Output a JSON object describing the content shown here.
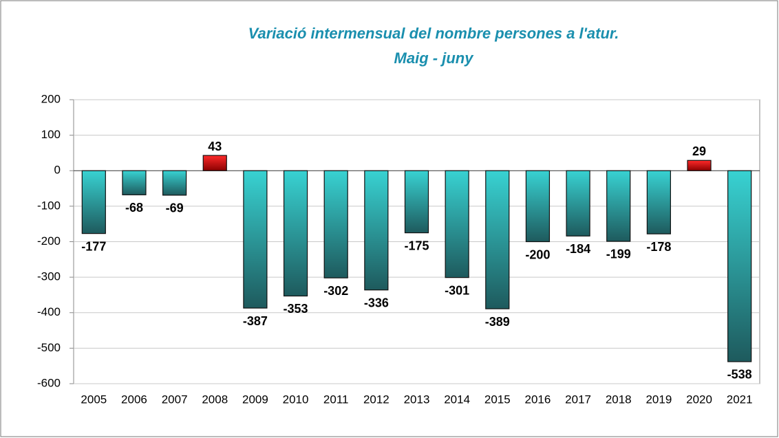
{
  "chart_data": {
    "type": "bar",
    "title": "Variació intermensual del nombre persones a l'atur.",
    "subtitle": "Maig - juny",
    "categories": [
      "2005",
      "2006",
      "2007",
      "2008",
      "2009",
      "2010",
      "2011",
      "2012",
      "2013",
      "2014",
      "2015",
      "2016",
      "2017",
      "2018",
      "2019",
      "2020",
      "2021"
    ],
    "values": [
      -177,
      -68,
      -69,
      43,
      -387,
      -353,
      -302,
      -336,
      -175,
      -301,
      -389,
      -200,
      -184,
      -199,
      -178,
      29,
      -538
    ],
    "gradient": {
      "negative": [
        "#38d2d2",
        "#1e5a5d"
      ],
      "positive": [
        "#ff2a2a",
        "#8a0000"
      ]
    },
    "label_color": "#1b8a9c",
    "ylim": [
      -600,
      200
    ],
    "yticks": [
      -600,
      -500,
      -400,
      -300,
      -200,
      -100,
      0,
      100,
      200
    ],
    "grid": true
  }
}
